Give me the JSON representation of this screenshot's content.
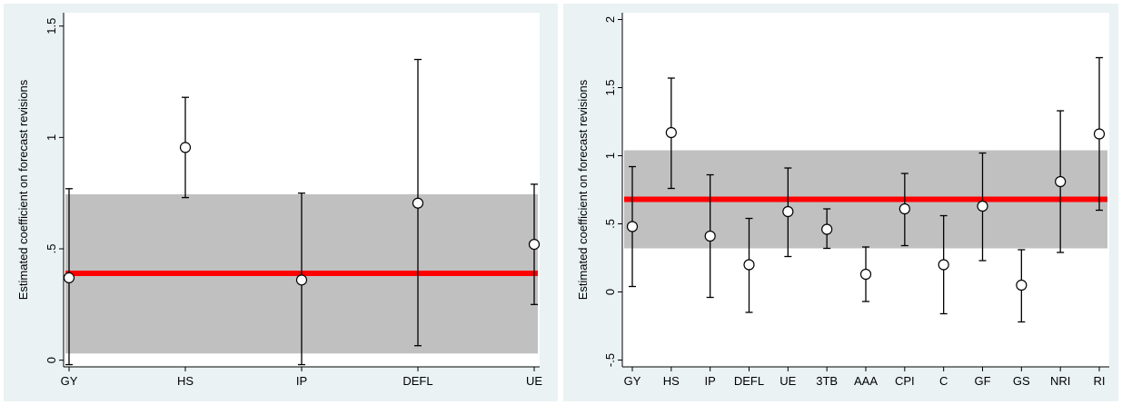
{
  "chart_data": [
    {
      "type": "scatter",
      "title": "",
      "ylabel": "Estimated coefficient on forecast revisions",
      "xlabel": "",
      "categories": [
        "GY",
        "HS",
        "IP",
        "DEFL",
        "UE"
      ],
      "ylim": [
        -0.03,
        1.56
      ],
      "yticks": [
        0,
        0.5,
        1,
        1.5
      ],
      "ytick_labels": [
        "0",
        ".5",
        "1",
        "1.5"
      ],
      "grid": false,
      "points": [
        {
          "label": "GY",
          "value": 0.37,
          "ci_low": -0.02,
          "ci_high": 0.77
        },
        {
          "label": "HS",
          "value": 0.955,
          "ci_low": 0.73,
          "ci_high": 1.18
        },
        {
          "label": "IP",
          "value": 0.36,
          "ci_low": -0.02,
          "ci_high": 0.75
        },
        {
          "label": "DEFL",
          "value": 0.705,
          "ci_low": 0.065,
          "ci_high": 1.35
        },
        {
          "label": "UE",
          "value": 0.52,
          "ci_low": 0.25,
          "ci_high": 0.79
        }
      ],
      "pooled": {
        "value": 0.39,
        "ci_low": 0.03,
        "ci_high": 0.745
      },
      "colors": {
        "pooled_line": "#ff0000",
        "band": "#c0c0c0",
        "background": "#eaf2f3"
      }
    },
    {
      "type": "scatter",
      "title": "",
      "ylabel": "Estimated coefficient on forecast revisions",
      "xlabel": "",
      "categories": [
        "GY",
        "HS",
        "IP",
        "DEFL",
        "UE",
        "3TB",
        "AAA",
        "CPI",
        "C",
        "GF",
        "GS",
        "NRI",
        "RI"
      ],
      "ylim": [
        -0.55,
        2.05
      ],
      "yticks": [
        -0.5,
        0,
        0.5,
        1,
        1.5,
        2
      ],
      "ytick_labels": [
        "-.5",
        "0",
        ".5",
        "1",
        "1.5",
        "2"
      ],
      "grid": false,
      "points": [
        {
          "label": "GY",
          "value": 0.48,
          "ci_low": 0.04,
          "ci_high": 0.92
        },
        {
          "label": "HS",
          "value": 1.17,
          "ci_low": 0.76,
          "ci_high": 1.57
        },
        {
          "label": "IP",
          "value": 0.41,
          "ci_low": -0.04,
          "ci_high": 0.86
        },
        {
          "label": "DEFL",
          "value": 0.2,
          "ci_low": -0.15,
          "ci_high": 0.54
        },
        {
          "label": "UE",
          "value": 0.59,
          "ci_low": 0.26,
          "ci_high": 0.91
        },
        {
          "label": "3TB",
          "value": 0.46,
          "ci_low": 0.32,
          "ci_high": 0.61
        },
        {
          "label": "AAA",
          "value": 0.13,
          "ci_low": -0.07,
          "ci_high": 0.33
        },
        {
          "label": "CPI",
          "value": 0.61,
          "ci_low": 0.34,
          "ci_high": 0.87
        },
        {
          "label": "C",
          "value": 0.2,
          "ci_low": -0.16,
          "ci_high": 0.56
        },
        {
          "label": "GF",
          "value": 0.63,
          "ci_low": 0.23,
          "ci_high": 1.02
        },
        {
          "label": "GS",
          "value": 0.05,
          "ci_low": -0.22,
          "ci_high": 0.31
        },
        {
          "label": "NRI",
          "value": 0.81,
          "ci_low": 0.29,
          "ci_high": 1.33
        },
        {
          "label": "RI",
          "value": 1.16,
          "ci_low": 0.6,
          "ci_high": 1.72
        }
      ],
      "pooled": {
        "value": 0.68,
        "ci_low": 0.32,
        "ci_high": 1.04
      },
      "colors": {
        "pooled_line": "#ff0000",
        "band": "#c0c0c0",
        "background": "#eaf2f3"
      }
    }
  ]
}
